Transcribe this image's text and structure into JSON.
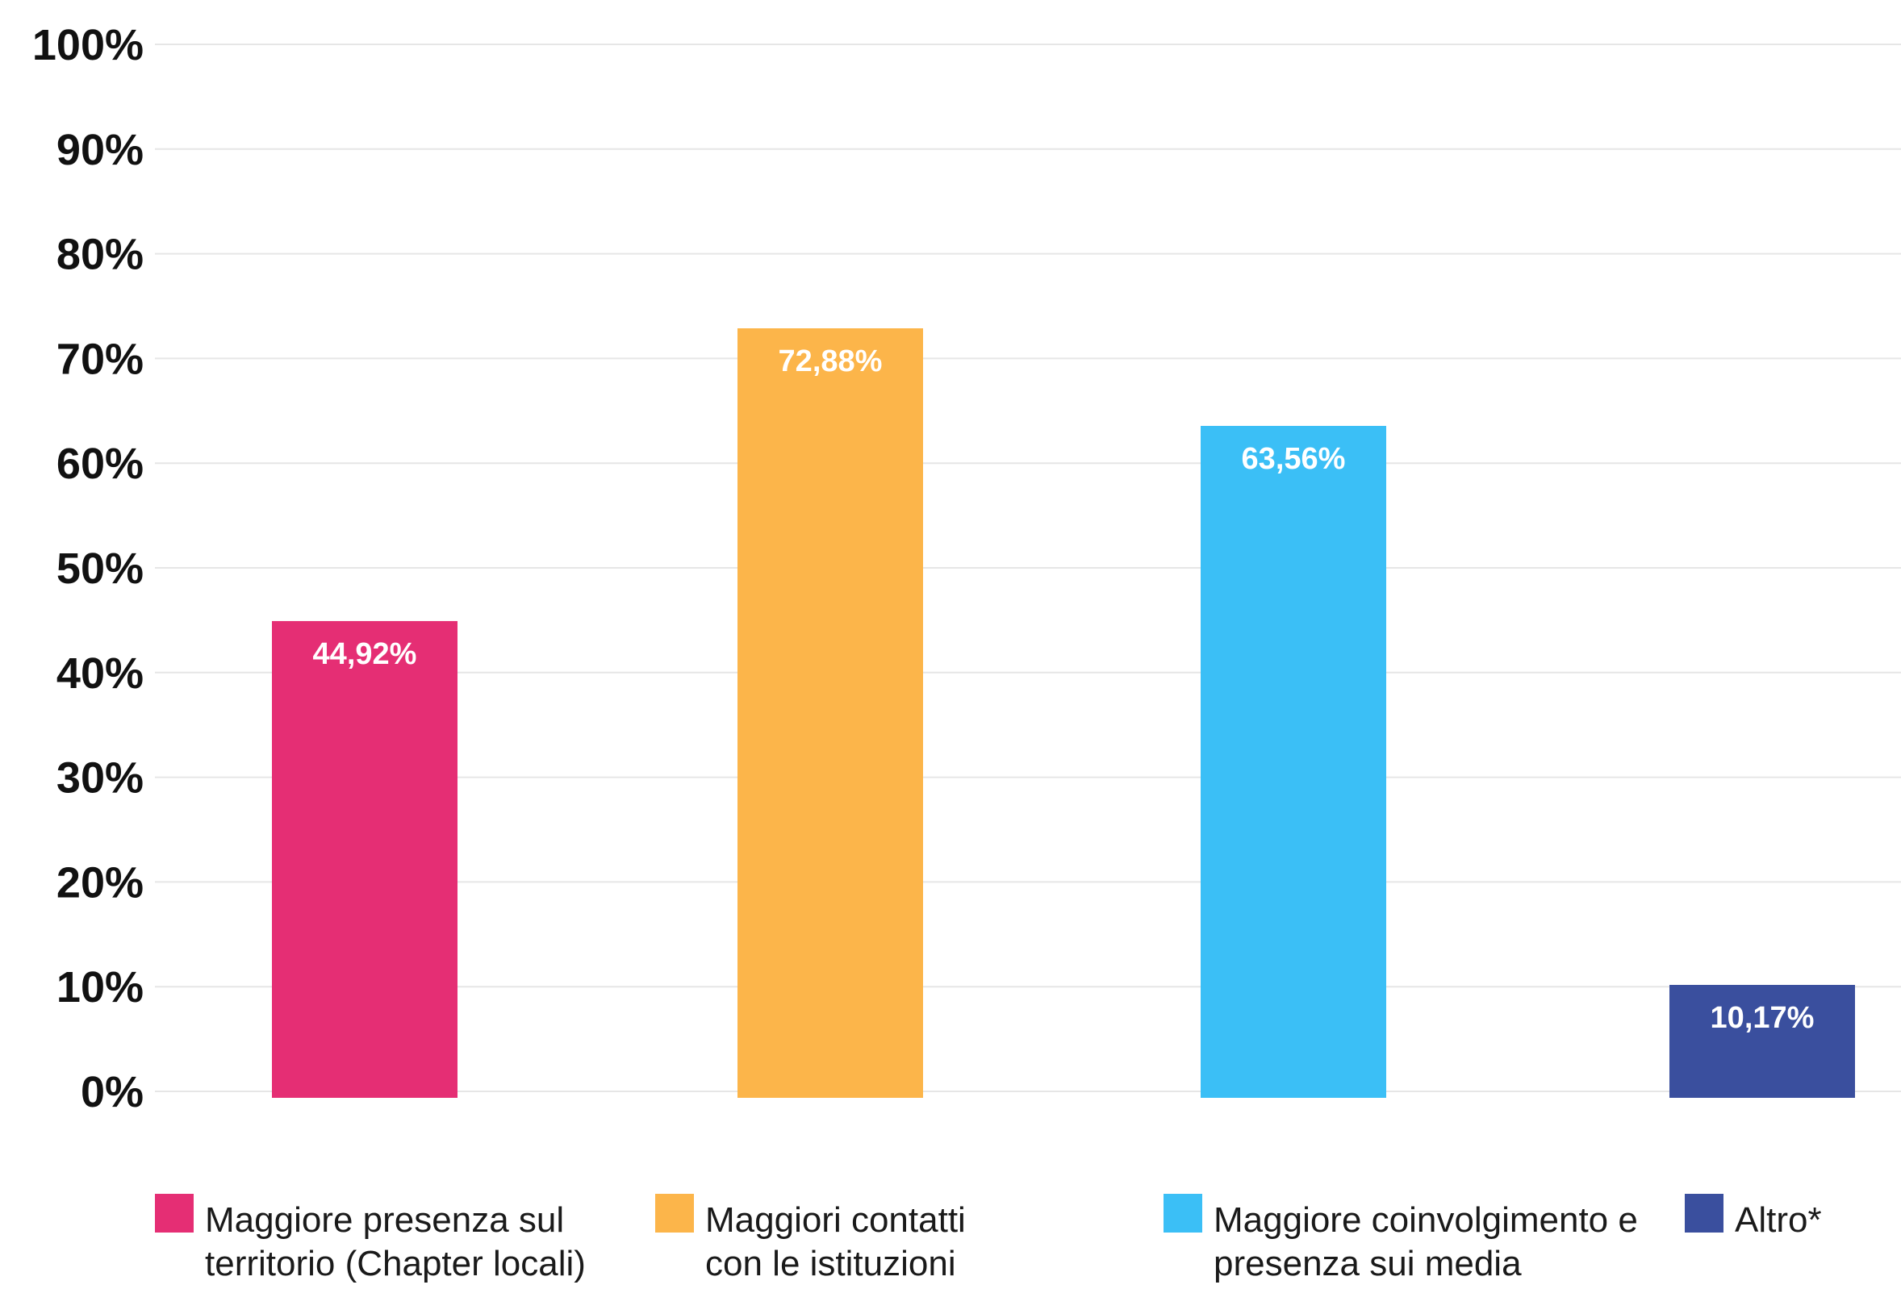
{
  "chart_data": {
    "type": "bar",
    "title": "",
    "xlabel": "",
    "ylabel": "",
    "ylim": [
      0,
      100
    ],
    "y_ticks": [
      "0%",
      "10%",
      "20%",
      "30%",
      "40%",
      "50%",
      "60%",
      "70%",
      "80%",
      "90%",
      "100%"
    ],
    "grid": true,
    "legend_position": "bottom",
    "categories": [
      "Maggiore presenza sul territorio (Chapter locali)",
      "Maggiori contatti con le istituzioni",
      "Maggiore coinvolgimento e presenza sui media",
      "Altro*"
    ],
    "values": [
      44.92,
      72.88,
      63.56,
      10.17
    ],
    "data_labels": [
      "44,92%",
      "72,88%",
      "63,56%",
      "10,17%"
    ],
    "colors": [
      "#e52e74",
      "#fcb54a",
      "#3bbff6",
      "#3a4f9e"
    ],
    "legend": [
      {
        "lines": [
          "Maggiore presenza sul",
          "territorio (Chapter locali)"
        ],
        "color": "#e52e74"
      },
      {
        "lines": [
          "Maggiori contatti",
          "con le istituzioni"
        ],
        "color": "#fcb54a"
      },
      {
        "lines": [
          "Maggiore coinvolgimento e",
          "presenza sui media"
        ],
        "color": "#3bbff6"
      },
      {
        "lines": [
          "Altro*"
        ],
        "color": "#3a4f9e"
      }
    ]
  },
  "style": {
    "gridline_color": "#e6e6e6",
    "tick_color": "#111111"
  }
}
